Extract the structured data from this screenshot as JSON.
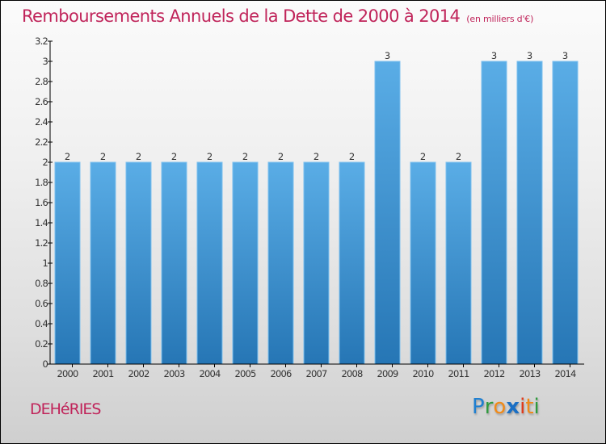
{
  "header": {
    "title": "Remboursements Annuels de la Dette de 2000 à 2014",
    "subtitle": "(en milliers d'€)"
  },
  "footer": {
    "commune": "DEHéRIES",
    "logo_letters": [
      {
        "ch": "P",
        "color": "#1f7fd0"
      },
      {
        "ch": "r",
        "color": "#2e9a3c"
      },
      {
        "ch": "o",
        "color": "#f08a18"
      },
      {
        "ch": "x",
        "color": "#1a6fc4"
      },
      {
        "ch": "i",
        "color": "#e03a1a"
      },
      {
        "ch": "t",
        "color": "#f08a18"
      },
      {
        "ch": "i",
        "color": "#2e9a3c"
      }
    ]
  },
  "colors": {
    "title": "#c0245a",
    "bar_top": "#5aade6",
    "bar_bottom": "#2676b5",
    "bar_edge": "#7cc0ef",
    "axis": "#000000"
  },
  "chart_data": {
    "type": "bar",
    "title": "Remboursements Annuels de la Dette de 2000 à 2014",
    "subtitle": "(en milliers d'€)",
    "xlabel": "",
    "ylabel": "",
    "categories": [
      "2000",
      "2001",
      "2002",
      "2003",
      "2004",
      "2005",
      "2006",
      "2007",
      "2008",
      "2009",
      "2010",
      "2011",
      "2012",
      "2013",
      "2014"
    ],
    "values": [
      2,
      2,
      2,
      2,
      2,
      2,
      2,
      2,
      2,
      3,
      2,
      2,
      3,
      3,
      3
    ],
    "data_labels": [
      "2",
      "2",
      "2",
      "2",
      "2",
      "2",
      "2",
      "2",
      "2",
      "3",
      "2",
      "2",
      "3",
      "3",
      "3"
    ],
    "ylim": [
      0,
      3.2
    ],
    "yticks": [
      0,
      0.2,
      0.4,
      0.6,
      0.8,
      1,
      1.2,
      1.4,
      1.6,
      1.8,
      2,
      2.2,
      2.4,
      2.6,
      2.8,
      3,
      3.2
    ],
    "ytick_labels": [
      "0",
      "0.2",
      "0.4",
      "0.6",
      "0.8",
      "1",
      "1.2",
      "1.4",
      "1.6",
      "1.8",
      "2",
      "2.2",
      "2.4",
      "2.6",
      "2.8",
      "3",
      "3.2"
    ],
    "grid": false,
    "legend": "none"
  }
}
